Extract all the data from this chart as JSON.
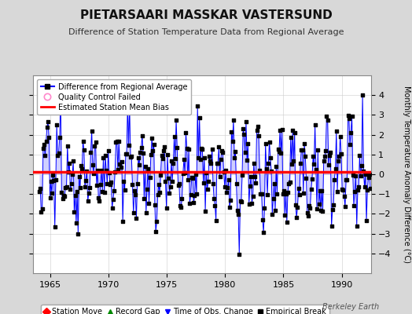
{
  "title": "PIETARSAARI MASSKAR VASTERSUND",
  "subtitle": "Difference of Station Temperature Data from Regional Average",
  "ylabel": "Monthly Temperature Anomaly Difference (°C)",
  "xlabel_years": [
    1965,
    1970,
    1975,
    1980,
    1985,
    1990
  ],
  "xlim": [
    1963.5,
    1992.5
  ],
  "ylim": [
    -5,
    5
  ],
  "yticks": [
    -4,
    -3,
    -2,
    -1,
    0,
    1,
    2,
    3,
    4
  ],
  "mean_bias": 0.1,
  "background_color": "#d8d8d8",
  "plot_bg_color": "#ffffff",
  "line_color": "#0000ff",
  "fill_color": "#8888ff",
  "marker_color": "#000000",
  "bias_color": "#ff0000",
  "watermark": "Berkeley Earth",
  "legend_items": [
    {
      "label": "Difference from Regional Average"
    },
    {
      "label": "Quality Control Failed"
    },
    {
      "label": "Estimated Station Mean Bias"
    }
  ],
  "legend2_items": [
    {
      "label": "Station Move",
      "color": "#ff0000",
      "marker": "D"
    },
    {
      "label": "Record Gap",
      "color": "#008800",
      "marker": "^"
    },
    {
      "label": "Time of Obs. Change",
      "color": "#0000ff",
      "marker": "v"
    },
    {
      "label": "Empirical Break",
      "color": "#000000",
      "marker": "s"
    }
  ],
  "seed": 12345
}
